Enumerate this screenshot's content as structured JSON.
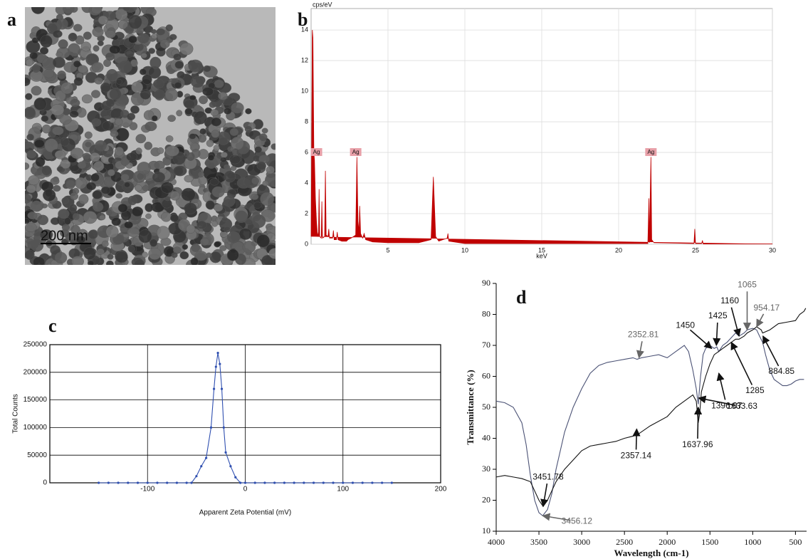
{
  "image": {
    "label": "a",
    "scale_bar": "200 nm"
  },
  "chart_data": [
    {
      "type": "area",
      "label": "b",
      "xlabel": "keV",
      "ylabel": "cps/eV",
      "color": "#c00000",
      "grid": true,
      "xlim": [
        0,
        30
      ],
      "ylim": [
        0,
        15.4
      ],
      "xticks": [
        5,
        10,
        15,
        20,
        25,
        30
      ],
      "yticks": [
        0,
        2,
        4,
        6,
        8,
        10,
        12,
        14
      ],
      "annotations": [
        {
          "text": "Ag",
          "x": 0.35,
          "y": 6
        },
        {
          "text": "Ag",
          "x": 2.9,
          "y": 6
        },
        {
          "text": "Ag",
          "x": 22.1,
          "y": 6
        }
      ],
      "x": [
        0,
        0.08,
        0.12,
        0.18,
        0.22,
        0.28,
        0.35,
        0.4,
        0.48,
        0.52,
        0.56,
        0.66,
        0.7,
        0.74,
        0.88,
        0.93,
        0.98,
        1.1,
        1.15,
        1.2,
        1.4,
        1.45,
        1.5,
        1.65,
        1.7,
        1.75,
        2.0,
        2.3,
        2.4,
        2.6,
        2.9,
        2.98,
        3.05,
        3.12,
        3.16,
        3.22,
        3.35,
        3.45,
        3.55,
        4,
        5,
        7,
        7.8,
        7.95,
        8.1,
        8.3,
        8.85,
        8.9,
        8.95,
        10,
        15,
        21.9,
        21.97,
        22.0,
        22.1,
        22.15,
        22.3,
        24.9,
        24.95,
        25.0,
        25.4,
        25.45,
        25.5,
        30
      ],
      "values": [
        0.5,
        14,
        13.5,
        6,
        5.5,
        3,
        1.5,
        0.8,
        0.5,
        3.6,
        0.5,
        0.4,
        2.8,
        0.4,
        0.5,
        4.8,
        0.6,
        0.5,
        1.0,
        0.4,
        0.4,
        0.9,
        0.3,
        0.3,
        0.8,
        0.3,
        0.2,
        0.2,
        0.3,
        0.4,
        0.6,
        5.7,
        1.5,
        0.8,
        2.5,
        0.7,
        0.4,
        0.7,
        0.3,
        0.15,
        0.1,
        0.1,
        0.3,
        4.4,
        0.5,
        0.2,
        0.4,
        0.7,
        0.2,
        0.05,
        0.05,
        0.05,
        3.0,
        0.1,
        5.7,
        0.3,
        0.1,
        0.05,
        1.0,
        0.05,
        0.05,
        0.25,
        0.02,
        0.02
      ]
    },
    {
      "type": "line",
      "label": "c",
      "xlabel": "Apparent Zeta Potential (mV)",
      "ylabel": "Total Counts",
      "color": "#2f4fb0",
      "markers": true,
      "grid": true,
      "xlim": [
        -200,
        200
      ],
      "ylim": [
        0,
        250000
      ],
      "xticks": [
        -100,
        0,
        100,
        200
      ],
      "yticks": [
        0,
        50000,
        100000,
        150000,
        200000,
        250000
      ],
      "x": [
        -150,
        -140,
        -130,
        -120,
        -110,
        -100,
        -90,
        -80,
        -70,
        -60,
        -55,
        -50,
        -45,
        -40,
        -35,
        -32,
        -30,
        -28,
        -26,
        -24,
        -22,
        -20,
        -15,
        -10,
        -5,
        0,
        10,
        20,
        30,
        40,
        50,
        60,
        70,
        80,
        90,
        100,
        110,
        120,
        130,
        140,
        150
      ],
      "values": [
        0,
        0,
        0,
        0,
        0,
        0,
        0,
        0,
        0,
        0,
        0,
        12000,
        30000,
        45000,
        100000,
        170000,
        210000,
        235000,
        215000,
        170000,
        100000,
        55000,
        30000,
        10000,
        0,
        0,
        0,
        0,
        0,
        0,
        0,
        0,
        0,
        0,
        0,
        0,
        0,
        0,
        0,
        0,
        0
      ]
    },
    {
      "type": "line",
      "label": "d",
      "xlabel": "Wavelength (cm-1)",
      "ylabel": "Transmittance (%)",
      "grid": false,
      "xlim": [
        4000,
        370
      ],
      "ylim": [
        10,
        90
      ],
      "xticks": [
        4000,
        3500,
        3000,
        2500,
        2000,
        1500,
        1000,
        500
      ],
      "yticks": [
        10,
        20,
        30,
        40,
        50,
        60,
        70,
        80,
        90
      ],
      "series": [
        {
          "color": "#4b5275",
          "x": [
            4000,
            3900,
            3800,
            3700,
            3650,
            3600,
            3550,
            3500,
            3456,
            3400,
            3350,
            3300,
            3200,
            3100,
            3000,
            2900,
            2800,
            2700,
            2600,
            2500,
            2400,
            2352,
            2300,
            2200,
            2100,
            2000,
            1900,
            1800,
            1750,
            1700,
            1660,
            1637,
            1610,
            1580,
            1550,
            1500,
            1450,
            1420,
            1396,
            1350,
            1300,
            1250,
            1200,
            1160,
            1100,
            1065,
            1000,
            954,
            920,
            884,
            850,
            800,
            750,
            700,
            650,
            600,
            550,
            500,
            450,
            400
          ],
          "values": [
            52,
            51.5,
            50,
            45,
            38,
            28,
            20,
            16,
            15,
            17,
            22,
            30,
            42,
            50,
            56,
            61,
            63.5,
            64.5,
            65,
            65.5,
            66,
            65.5,
            66,
            66.5,
            67,
            66,
            68,
            70,
            68,
            62,
            56,
            51,
            60,
            67,
            69,
            70,
            69,
            69.5,
            68,
            70,
            71,
            72.5,
            74,
            73,
            74,
            75,
            75.5,
            75,
            73,
            71,
            67,
            62,
            59,
            58,
            57,
            57,
            57.5,
            58.5,
            59,
            59
          ]
        },
        {
          "color": "#111111",
          "x": [
            4000,
            3900,
            3800,
            3700,
            3600,
            3550,
            3500,
            3451,
            3400,
            3350,
            3300,
            3200,
            3100,
            3000,
            2900,
            2800,
            2700,
            2600,
            2500,
            2357,
            2200,
            2000,
            1900,
            1800,
            1700,
            1660,
            1637,
            1620,
            1600,
            1550,
            1500,
            1450,
            1400,
            1350,
            1300,
            1250,
            1200,
            1160,
            1100,
            1065,
            1000,
            954,
            900,
            884,
            800,
            700,
            600,
            500,
            450,
            400,
            380
          ],
          "values": [
            27.5,
            28,
            27.5,
            27,
            26,
            23,
            20,
            18,
            20,
            23,
            26,
            30,
            33,
            36,
            37.5,
            38,
            38.5,
            39,
            40,
            41,
            44,
            47,
            50,
            52,
            54,
            52,
            45,
            48,
            55,
            60,
            64,
            67,
            68,
            69,
            70,
            71,
            72,
            72,
            73,
            74,
            75,
            76,
            75,
            74,
            75,
            77,
            77.5,
            78,
            80,
            81,
            82
          ]
        }
      ],
      "annotations": [
        {
          "text": "1065",
          "x": 1065,
          "y": 75,
          "color": "#666666"
        },
        {
          "text": "1160",
          "x": 1160,
          "y": 73,
          "color": "#111111"
        },
        {
          "text": "954.17",
          "x": 954,
          "y": 76,
          "color": "#666666"
        },
        {
          "text": "1425",
          "x": 1425,
          "y": 70,
          "color": "#111111"
        },
        {
          "text": "1450",
          "x": 1480,
          "y": 69,
          "color": "#111111"
        },
        {
          "text": "2352.81",
          "x": 2330,
          "y": 66,
          "color": "#666666"
        },
        {
          "text": "884.85",
          "x": 880,
          "y": 73,
          "color": "#111111"
        },
        {
          "text": "1285",
          "x": 1250,
          "y": 71,
          "color": "#111111"
        },
        {
          "text": "1396.07",
          "x": 1396,
          "y": 61,
          "color": "#111111"
        },
        {
          "text": "1633.63",
          "x": 1633,
          "y": 53,
          "color": "#111111"
        },
        {
          "text": "1637.96",
          "x": 1637,
          "y": 50,
          "color": "#111111"
        },
        {
          "text": "2357.14",
          "x": 2357,
          "y": 43,
          "color": "#111111"
        },
        {
          "text": "3451.78",
          "x": 3451,
          "y": 18,
          "color": "#111111"
        },
        {
          "text": "3456.12",
          "x": 3456,
          "y": 15,
          "color": "#666666"
        }
      ]
    }
  ]
}
